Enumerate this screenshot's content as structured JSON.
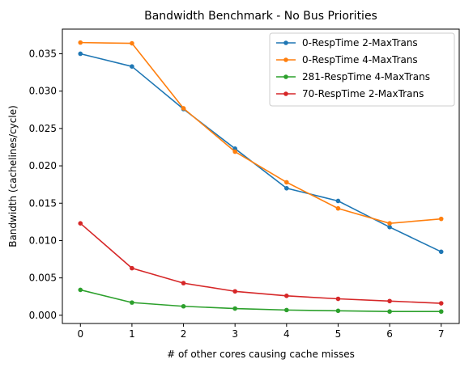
{
  "chart_data": {
    "type": "line",
    "title": "Bandwidth Benchmark - No Bus Priorities",
    "xlabel": "# of other cores causing cache misses",
    "ylabel": "Bandwidth (cachelines/cycle)",
    "x": [
      0,
      1,
      2,
      3,
      4,
      5,
      6,
      7
    ],
    "xticks": [
      "0",
      "1",
      "2",
      "3",
      "4",
      "5",
      "6",
      "7"
    ],
    "yticks": [
      "0.000",
      "0.005",
      "0.010",
      "0.015",
      "0.020",
      "0.025",
      "0.030",
      "0.035"
    ],
    "xlim": [
      -0.35,
      7.35
    ],
    "ylim": [
      -0.0011,
      0.0383
    ],
    "grid": false,
    "legend_position": "top-right",
    "series": [
      {
        "name": "0-RespTime 2-MaxTrans",
        "color": "#1f77b4",
        "values": [
          0.035,
          0.0333,
          0.0276,
          0.0223,
          0.017,
          0.0153,
          0.0118,
          0.0085
        ]
      },
      {
        "name": "0-RespTime 4-MaxTrans",
        "color": "#ff7f0e",
        "values": [
          0.0365,
          0.0364,
          0.0277,
          0.0219,
          0.0178,
          0.0143,
          0.0123,
          0.0129
        ]
      },
      {
        "name": "281-RespTime 4-MaxTrans",
        "color": "#2ca02c",
        "values": [
          0.0034,
          0.0017,
          0.0012,
          0.0009,
          0.0007,
          0.0006,
          0.0005,
          0.0005
        ]
      },
      {
        "name": "70-RespTime 2-MaxTrans",
        "color": "#d62728",
        "values": [
          0.0123,
          0.0063,
          0.0043,
          0.0032,
          0.0026,
          0.0022,
          0.0019,
          0.0016
        ]
      }
    ]
  }
}
